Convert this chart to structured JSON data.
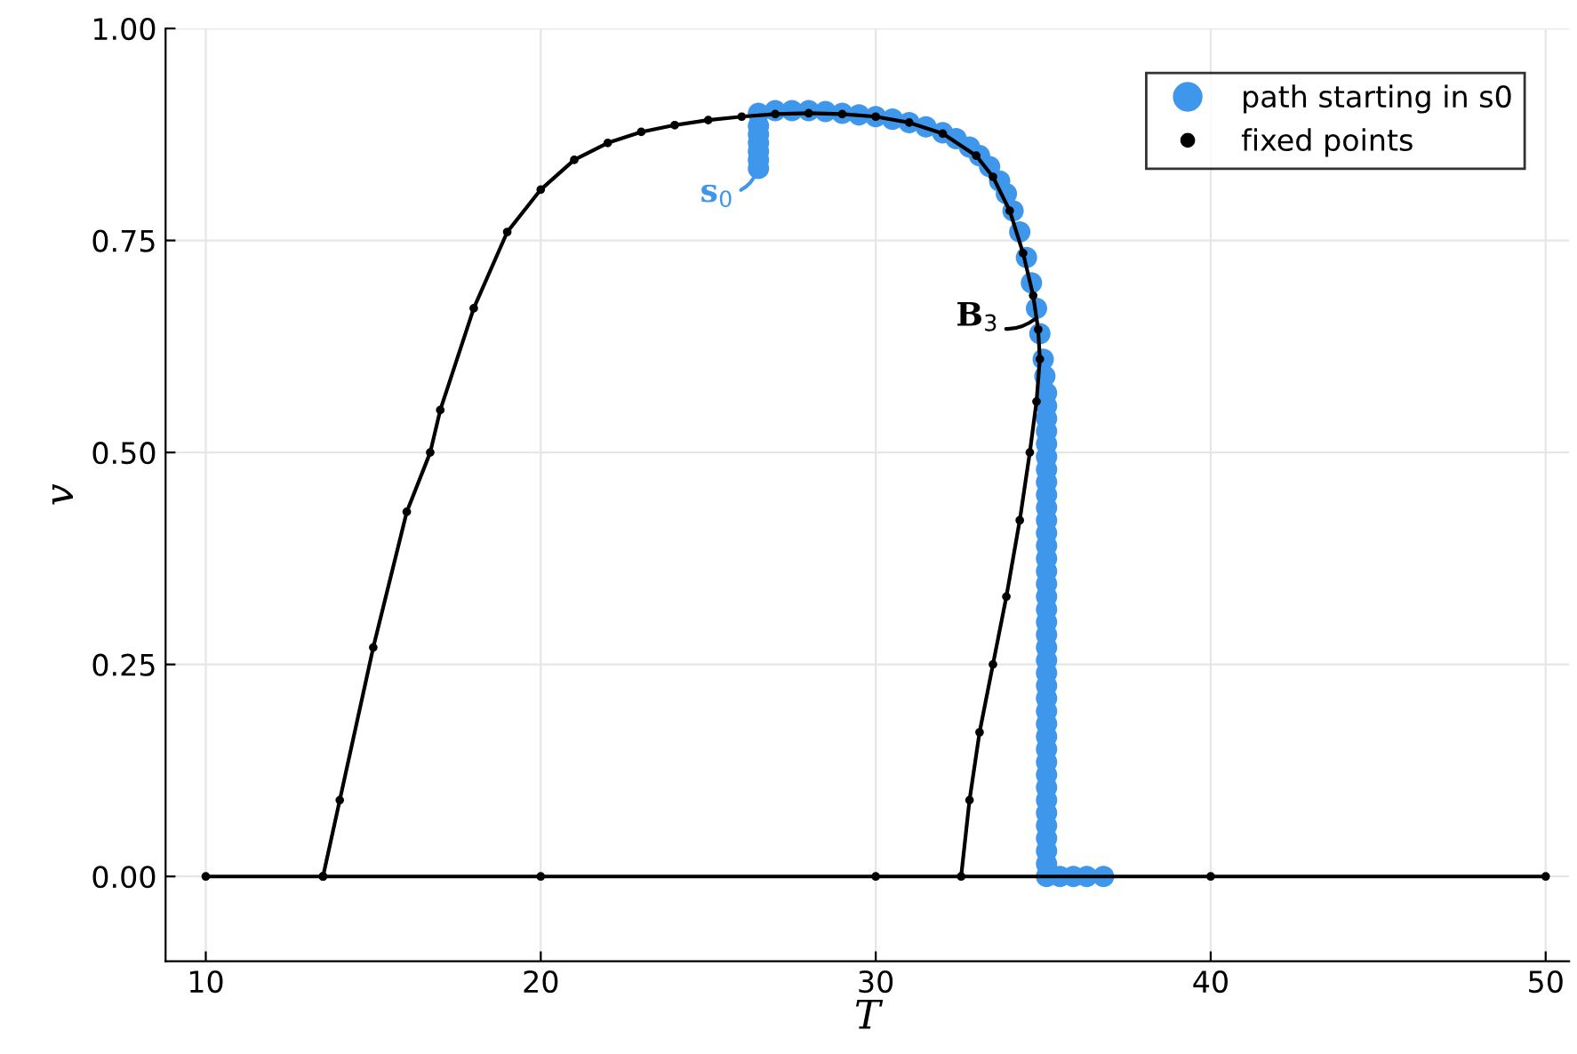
{
  "chart_data": {
    "type": "scatter",
    "xlabel": "T",
    "ylabel": "v",
    "xlim": [
      8.8,
      50.7
    ],
    "ylim": [
      -0.1,
      1.0
    ],
    "xticks": [
      10,
      20,
      30,
      40,
      50
    ],
    "yticks": [
      {
        "value": 0,
        "label": "0.00"
      },
      {
        "value": 0.25,
        "label": "0.25"
      },
      {
        "value": 0.5,
        "label": "0.50"
      },
      {
        "value": 0.75,
        "label": "0.75"
      },
      {
        "value": 1.0,
        "label": "1.00"
      }
    ],
    "grid": true,
    "legend": "top right",
    "marker": "circle",
    "series": [
      {
        "name": "path starting in s0",
        "color": "#3f97ec",
        "x": [
          26.5,
          26.5,
          26.5,
          26.5,
          26.5,
          26.5,
          26.5,
          27,
          27.5,
          28,
          28.5,
          29,
          29.5,
          30,
          30.5,
          31,
          31.5,
          32,
          32.4,
          32.8,
          33.1,
          33.4,
          33.7,
          33.9,
          34.1,
          34.3,
          34.5,
          34.65,
          34.8,
          34.9,
          35.0,
          35.05,
          35.1,
          35.1,
          35.1,
          35.1,
          35.1,
          35.1,
          35.1,
          35.1,
          35.1,
          35.1,
          35.1,
          35.1,
          35.1,
          35.1,
          35.1,
          35.1,
          35.1,
          35.1,
          35.1,
          35.1,
          35.1,
          35.1,
          35.1,
          35.1,
          35.1,
          35.1,
          35.1,
          35.1,
          35.1,
          35.1,
          35.1,
          35.1,
          35.1,
          35.1,
          35.1,
          35.1,
          35.1,
          35.1,
          35.1,
          35.5,
          35.9,
          36.3,
          36.8
        ],
        "values": [
          0.835,
          0.845,
          0.855,
          0.865,
          0.875,
          0.885,
          0.9,
          0.903,
          0.903,
          0.903,
          0.902,
          0.9,
          0.898,
          0.896,
          0.893,
          0.889,
          0.884,
          0.877,
          0.87,
          0.86,
          0.85,
          0.837,
          0.82,
          0.805,
          0.785,
          0.76,
          0.73,
          0.7,
          0.67,
          0.64,
          0.61,
          0.59,
          0.57,
          0.555,
          0.54,
          0.525,
          0.51,
          0.495,
          0.48,
          0.465,
          0.45,
          0.435,
          0.42,
          0.405,
          0.39,
          0.375,
          0.36,
          0.345,
          0.33,
          0.315,
          0.3,
          0.285,
          0.27,
          0.255,
          0.24,
          0.225,
          0.21,
          0.195,
          0.18,
          0.165,
          0.15,
          0.135,
          0.12,
          0.105,
          0.09,
          0.075,
          0.06,
          0.045,
          0.03,
          0.015,
          0,
          0,
          0,
          0,
          0
        ]
      },
      {
        "name": "fixed points",
        "type": "line",
        "color": "#000000",
        "x": [
          10,
          13.5,
          20,
          30,
          40,
          50,
          null,
          13.5,
          14,
          15,
          16,
          16.7,
          17,
          18,
          19,
          20,
          21,
          22,
          23,
          24,
          25,
          26,
          27,
          28,
          29,
          30,
          31,
          32,
          33,
          33.5,
          34,
          34.4,
          34.7,
          34.85,
          34.9,
          34.8,
          34.6,
          34.3,
          33.9,
          33.5,
          33.1,
          32.8,
          32.55
        ],
        "values": [
          0,
          0,
          0,
          0,
          0,
          0,
          null,
          0,
          0.09,
          0.27,
          0.43,
          0.5,
          0.55,
          0.67,
          0.76,
          0.81,
          0.845,
          0.865,
          0.878,
          0.886,
          0.892,
          0.896,
          0.899,
          0.9,
          0.899,
          0.896,
          0.889,
          0.876,
          0.85,
          0.825,
          0.785,
          0.735,
          0.685,
          0.645,
          0.61,
          0.56,
          0.5,
          0.42,
          0.33,
          0.25,
          0.17,
          0.09,
          0
        ]
      }
    ],
    "annotations": [
      {
        "text": "s$_{0}$",
        "x": 26.5,
        "y": 0.835
      },
      {
        "text": "B$_{3}$",
        "x": 34.85,
        "y": 0.66
      }
    ]
  }
}
